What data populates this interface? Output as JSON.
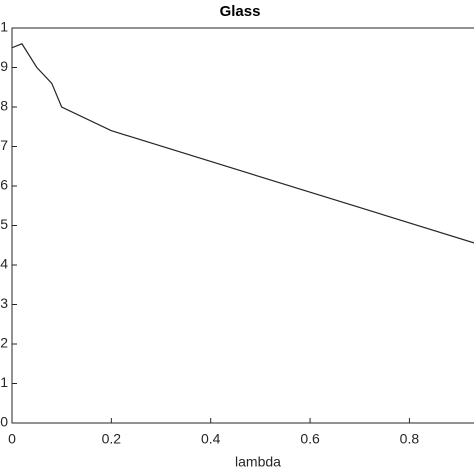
{
  "chart_data": {
    "type": "line",
    "title": "Glass",
    "xlabel": "lambda",
    "x": [
      0,
      0.02,
      0.05,
      0.08,
      0.1,
      0.2,
      0.93
    ],
    "series": [
      {
        "name": "Glass",
        "color": "#262626",
        "values": [
          0.95,
          0.96,
          0.9,
          0.86,
          0.8,
          0.74,
          0.456
        ]
      }
    ],
    "xlim": [
      0,
      0.93
    ],
    "xticks": [
      0,
      0.2,
      0.4,
      0.6,
      0.8
    ],
    "ylim": [
      0,
      1
    ],
    "yticks": [
      0,
      {
        "value": 0.1,
        "label": "1"
      },
      {
        "value": 0.2,
        "label": "2"
      },
      {
        "value": 0.3,
        "label": "3"
      },
      {
        "value": 0.4,
        "label": "4"
      },
      {
        "value": 0.5,
        "label": "5"
      },
      {
        "value": 0.6,
        "label": "6"
      },
      {
        "value": 0.7,
        "label": "7"
      },
      {
        "value": 0.8,
        "label": "8"
      },
      {
        "value": 0.9,
        "label": "9"
      },
      1
    ],
    "grid": false
  }
}
